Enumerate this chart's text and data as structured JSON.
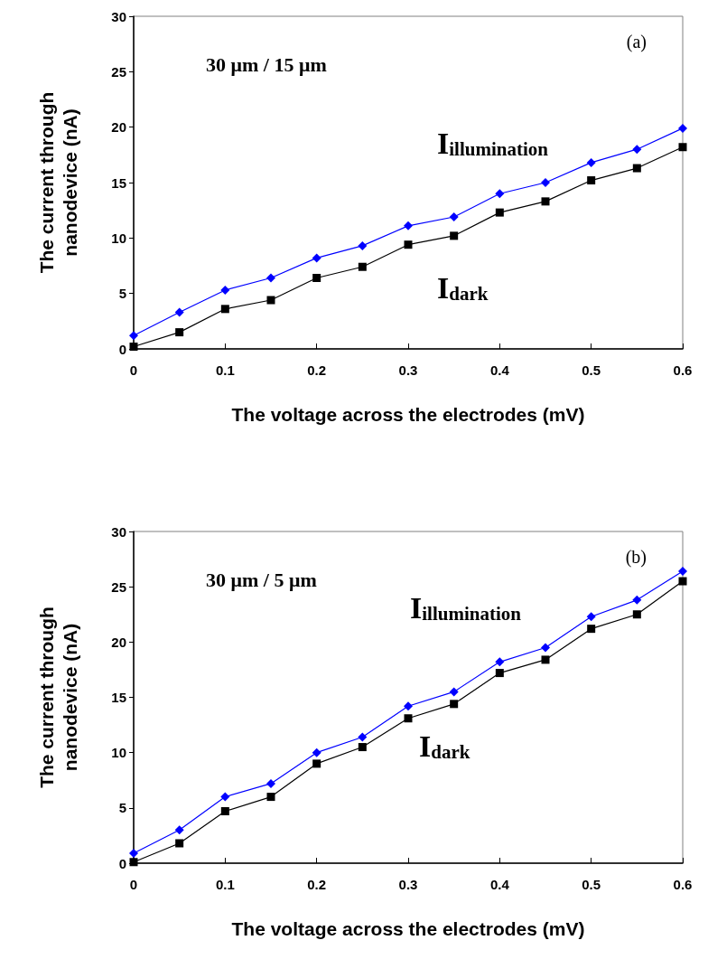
{
  "chart_data": [
    {
      "type": "line",
      "xlabel": "The voltage across the electrodes (mV)",
      "ylabel": "The current through\nnanodevice (nA)",
      "annotations": [
        "30 μm / 15 μm",
        "(a)"
      ],
      "x": [
        0,
        0.05,
        0.1,
        0.15,
        0.2,
        0.25,
        0.3,
        0.35,
        0.4,
        0.45,
        0.5,
        0.55,
        0.6
      ],
      "series": [
        {
          "name": "I$_{illumination}$",
          "color": "#0000ff",
          "marker": "diamond",
          "values": [
            1.2,
            3.3,
            5.3,
            6.4,
            8.2,
            9.3,
            11.1,
            11.9,
            14.0,
            15.0,
            16.8,
            18.0,
            19.9
          ]
        },
        {
          "name": "I$_{dark}$",
          "color": "#000000",
          "marker": "square",
          "values": [
            0.2,
            1.5,
            3.6,
            4.4,
            6.4,
            7.4,
            9.4,
            10.2,
            12.3,
            13.3,
            15.2,
            16.3,
            18.2
          ]
        }
      ],
      "xlim": [
        0,
        0.6
      ],
      "xticks": [
        0,
        0.1,
        0.2,
        0.3,
        0.4,
        0.5,
        0.6
      ],
      "ylim": [
        0,
        30
      ],
      "yticks": [
        0,
        5,
        10,
        15,
        20,
        25,
        30
      ]
    },
    {
      "type": "line",
      "xlabel": "The voltage across the electrodes (mV)",
      "ylabel": "The current through\nnanodevice (nA)",
      "annotations": [
        "30 μm / 5 μm",
        "(b)"
      ],
      "x": [
        0,
        0.05,
        0.1,
        0.15,
        0.2,
        0.25,
        0.3,
        0.35,
        0.4,
        0.45,
        0.5,
        0.55,
        0.6
      ],
      "series": [
        {
          "name": "I$_{illumination}$",
          "color": "#0000ff",
          "marker": "diamond",
          "values": [
            0.9,
            3.0,
            6.0,
            7.2,
            10.0,
            11.4,
            14.2,
            15.5,
            18.2,
            19.5,
            22.3,
            23.8,
            26.4
          ]
        },
        {
          "name": "I$_{dark}$",
          "color": "#000000",
          "marker": "square",
          "values": [
            0.1,
            1.8,
            4.7,
            6.0,
            9.0,
            10.5,
            13.1,
            14.4,
            17.2,
            18.4,
            21.2,
            22.5,
            25.5
          ]
        }
      ],
      "xlim": [
        0,
        0.6
      ],
      "xticks": [
        0,
        0.1,
        0.2,
        0.3,
        0.4,
        0.5,
        0.6
      ],
      "ylim": [
        0,
        30
      ],
      "yticks": [
        0,
        5,
        10,
        15,
        20,
        25,
        30
      ]
    }
  ]
}
